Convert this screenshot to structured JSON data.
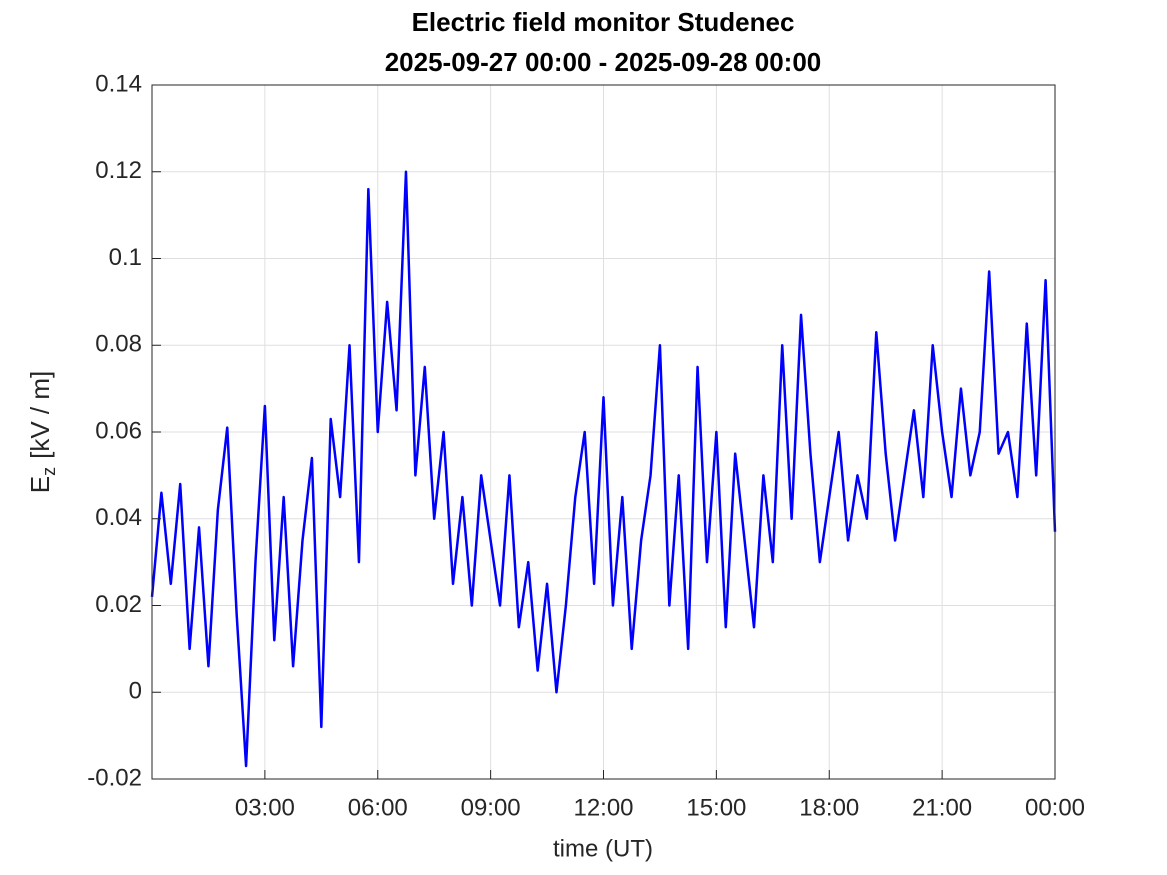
{
  "chart_data": {
    "type": "line",
    "title": [
      "Electric field monitor Studenec",
      "2025-09-27 00:00 - 2025-09-28 00:00"
    ],
    "xlabel": "time (UT)",
    "ylabel": {
      "main": "E",
      "subscript": "z",
      "unit": "[kV / m]"
    },
    "xlim": [
      0,
      24
    ],
    "ylim": [
      -0.02,
      0.14
    ],
    "xticks": [
      {
        "value": 3,
        "label": "03:00"
      },
      {
        "value": 6,
        "label": "06:00"
      },
      {
        "value": 9,
        "label": "09:00"
      },
      {
        "value": 12,
        "label": "12:00"
      },
      {
        "value": 15,
        "label": "15:00"
      },
      {
        "value": 18,
        "label": "18:00"
      },
      {
        "value": 21,
        "label": "21:00"
      },
      {
        "value": 24,
        "label": "00:00"
      }
    ],
    "yticks": [
      -0.02,
      0,
      0.02,
      0.04,
      0.06,
      0.08,
      0.1,
      0.12,
      0.14
    ],
    "grid": true,
    "x": [
      0,
      0.25,
      0.5,
      0.75,
      1,
      1.25,
      1.5,
      1.75,
      2,
      2.25,
      2.5,
      2.75,
      3,
      3.25,
      3.5,
      3.75,
      4,
      4.25,
      4.5,
      4.75,
      5,
      5.25,
      5.5,
      5.75,
      6,
      6.25,
      6.5,
      6.75,
      7,
      7.25,
      7.5,
      7.75,
      8,
      8.25,
      8.5,
      8.75,
      9,
      9.25,
      9.5,
      9.75,
      10,
      10.25,
      10.5,
      10.75,
      11,
      11.25,
      11.5,
      11.75,
      12,
      12.25,
      12.5,
      12.75,
      13,
      13.25,
      13.5,
      13.75,
      14,
      14.25,
      14.5,
      14.75,
      15,
      15.25,
      15.5,
      15.75,
      16,
      16.25,
      16.5,
      16.75,
      17,
      17.25,
      17.5,
      17.75,
      18,
      18.25,
      18.5,
      18.75,
      19,
      19.25,
      19.5,
      19.75,
      20,
      20.25,
      20.5,
      20.75,
      21,
      21.25,
      21.5,
      21.75,
      22,
      22.25,
      22.5,
      22.75,
      23,
      23.25,
      23.5,
      23.75,
      24
    ],
    "series": [
      {
        "color": "#0000ff",
        "values": [
          0.022,
          0.046,
          0.025,
          0.048,
          0.01,
          0.038,
          0.006,
          0.042,
          0.061,
          0.018,
          -0.017,
          0.03,
          0.066,
          0.012,
          0.045,
          0.006,
          0.035,
          0.054,
          -0.008,
          0.063,
          0.045,
          0.08,
          0.03,
          0.116,
          0.06,
          0.09,
          0.065,
          0.12,
          0.05,
          0.075,
          0.04,
          0.06,
          0.025,
          0.045,
          0.02,
          0.05,
          0.035,
          0.02,
          0.05,
          0.015,
          0.03,
          0.005,
          0.025,
          0.0,
          0.02,
          0.045,
          0.06,
          0.025,
          0.068,
          0.02,
          0.045,
          0.01,
          0.035,
          0.05,
          0.08,
          0.02,
          0.05,
          0.01,
          0.075,
          0.03,
          0.06,
          0.015,
          0.055,
          0.035,
          0.015,
          0.05,
          0.03,
          0.08,
          0.04,
          0.087,
          0.055,
          0.03,
          0.045,
          0.06,
          0.035,
          0.05,
          0.04,
          0.083,
          0.055,
          0.035,
          0.05,
          0.065,
          0.045,
          0.08,
          0.06,
          0.045,
          0.07,
          0.05,
          0.06,
          0.097,
          0.055,
          0.06,
          0.045,
          0.085,
          0.05,
          0.095,
          0.037
        ]
      }
    ]
  }
}
